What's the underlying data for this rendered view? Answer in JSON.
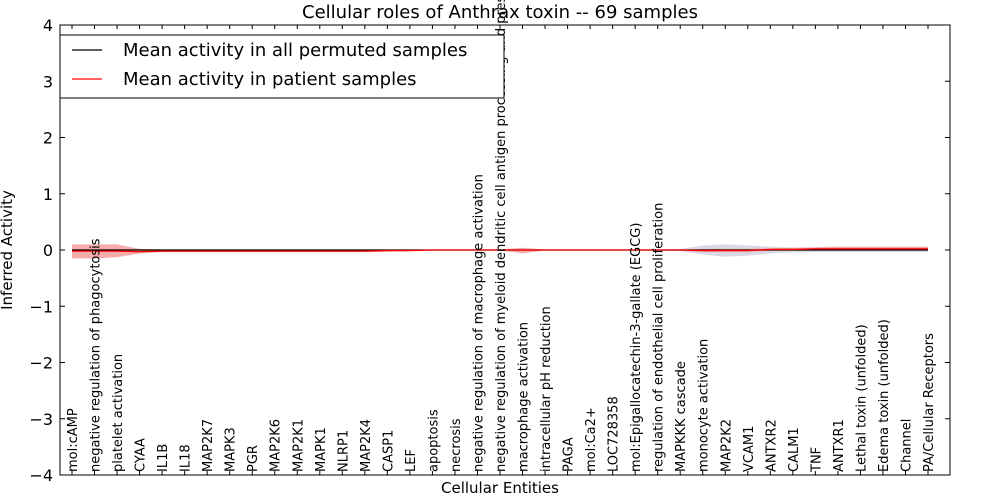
{
  "chart_data": {
    "type": "line",
    "title": "Cellular roles of Anthrax toxin -- 69 samples",
    "xlabel": "Cellular Entities",
    "ylabel": "Inferred Activity",
    "ylim": [
      -4,
      4
    ],
    "yticks": [
      -4,
      -3,
      -2,
      -1,
      0,
      1,
      2,
      3,
      4
    ],
    "ytick_labels": [
      "−4",
      "−3",
      "−2",
      "−1",
      "0",
      "1",
      "2",
      "3",
      "4"
    ],
    "grid": false,
    "legend_position": "top-left",
    "categories": [
      "mol:cAMP",
      "negative regulation of phagocytosis",
      "platelet activation",
      "CYAA",
      "IL1B",
      "IL18",
      "MAP2K7",
      "MAPK3",
      "PGR",
      "MAP2K6",
      "MAP2K1",
      "MAPK1",
      "NLRP1",
      "MAP2K4",
      "CASP1",
      "LEF",
      "apoptosis",
      "necrosis",
      "negative regulation of macrophage activation",
      "negative regulation of myeloid dendritic cell antigen processing and presentation",
      "macrophage activation",
      "intracellular pH reduction",
      "PAGA",
      "mol:Ca2+",
      "LOC728358",
      "mol:Epigallocatechin-3-gallate (EGCG)",
      "regulation of endothelial cell proliferation",
      "MAPKKK cascade",
      "monocyte activation",
      "MAP2K2",
      "VCAM1",
      "ANTXR2",
      "CALM1",
      "TNF",
      "ANTXR1",
      "Lethal toxin (unfolded)",
      "Edema toxin (unfolded)",
      "Channel",
      "PA/Cellular Receptors"
    ],
    "series": [
      {
        "name": "Mean activity in all permuted samples",
        "color": "#000000",
        "band_color": "#b0a8c4",
        "values": [
          0,
          0,
          0,
          0,
          0,
          0,
          0,
          0,
          0,
          0,
          0,
          0,
          0,
          0,
          0,
          0,
          0,
          0,
          0,
          0,
          0,
          0,
          0,
          0,
          0,
          0,
          0,
          0,
          0,
          0,
          0,
          0,
          0,
          0,
          0,
          0,
          0,
          0,
          0
        ],
        "band_lower": [
          -0.01,
          -0.01,
          -0.01,
          -0.01,
          -0.01,
          -0.01,
          -0.01,
          -0.01,
          -0.01,
          -0.01,
          -0.01,
          -0.01,
          -0.01,
          -0.01,
          -0.01,
          -0.01,
          -0.01,
          -0.01,
          -0.01,
          -0.01,
          -0.01,
          -0.01,
          -0.01,
          -0.01,
          -0.01,
          -0.01,
          -0.01,
          -0.02,
          -0.08,
          -0.12,
          -0.1,
          -0.06,
          -0.04,
          -0.04,
          -0.04,
          -0.04,
          -0.04,
          -0.04,
          -0.04
        ],
        "band_upper": [
          0.01,
          0.01,
          0.01,
          0.01,
          0.01,
          0.01,
          0.01,
          0.01,
          0.01,
          0.01,
          0.01,
          0.01,
          0.01,
          0.01,
          0.01,
          0.01,
          0.01,
          0.01,
          0.01,
          0.01,
          0.01,
          0.01,
          0.01,
          0.01,
          0.01,
          0.01,
          0.01,
          0.02,
          0.08,
          0.1,
          0.08,
          0.06,
          0.04,
          0.04,
          0.04,
          0.04,
          0.04,
          0.04,
          0.04
        ]
      },
      {
        "name": "Mean activity in patient samples",
        "color": "#ff0000",
        "band_color": "#f08080",
        "values": [
          -0.02,
          -0.02,
          -0.02,
          -0.03,
          -0.02,
          -0.02,
          -0.02,
          -0.02,
          -0.02,
          -0.02,
          -0.02,
          -0.02,
          -0.02,
          -0.02,
          -0.01,
          -0.01,
          0,
          0,
          0,
          0,
          0,
          0,
          0,
          0,
          0,
          0,
          0,
          0,
          -0.01,
          -0.01,
          -0.01,
          0.01,
          0.01,
          0.02,
          0.02,
          0.02,
          0.02,
          0.02,
          0.02
        ],
        "band_lower": [
          -0.15,
          -0.15,
          -0.13,
          -0.06,
          -0.04,
          -0.04,
          -0.04,
          -0.04,
          -0.04,
          -0.04,
          -0.04,
          -0.04,
          -0.04,
          -0.04,
          -0.03,
          -0.02,
          -0.01,
          -0.01,
          -0.01,
          -0.01,
          -0.06,
          -0.01,
          -0.01,
          -0.01,
          -0.01,
          -0.01,
          -0.01,
          -0.01,
          -0.03,
          -0.03,
          -0.03,
          -0.01,
          -0.01,
          0.0,
          0.0,
          0.0,
          0.0,
          0.0,
          0.0
        ],
        "band_upper": [
          0.1,
          0.1,
          0.1,
          0.02,
          0.01,
          0.01,
          0.01,
          0.01,
          0.01,
          0.01,
          0.01,
          0.01,
          0.01,
          0.01,
          0.01,
          0.01,
          0.01,
          0.01,
          0.01,
          0.01,
          0.04,
          0.01,
          0.01,
          0.01,
          0.01,
          0.01,
          0.01,
          0.01,
          0.02,
          0.02,
          0.02,
          0.03,
          0.04,
          0.05,
          0.06,
          0.06,
          0.06,
          0.06,
          0.06
        ]
      }
    ]
  }
}
